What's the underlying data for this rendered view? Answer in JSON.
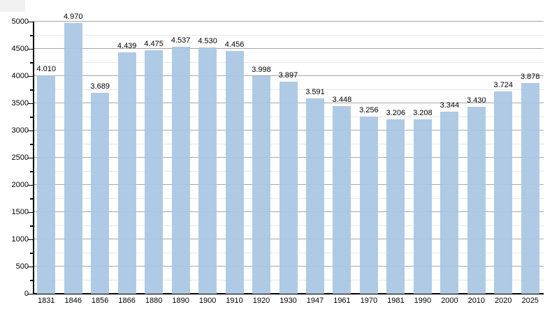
{
  "page": {
    "background_color": "#ffffff",
    "corner_artifact_color": "#f0f0f0"
  },
  "chart_data": {
    "type": "bar",
    "title": "",
    "xlabel": "",
    "ylabel": "",
    "categories": [
      "1831",
      "1846",
      "1856",
      "1866",
      "1880",
      "1890",
      "1900",
      "1910",
      "1920",
      "1930",
      "1947",
      "1961",
      "1970",
      "1981",
      "1990",
      "2000",
      "2010",
      "2020",
      "2025"
    ],
    "values": [
      4010,
      4970,
      3689,
      4439,
      4475,
      4537,
      4530,
      4456,
      3998,
      3897,
      3591,
      3448,
      3256,
      3206,
      3208,
      3344,
      3430,
      3724,
      3878
    ],
    "value_labels": [
      "4.010",
      "4.970",
      "3.689",
      "4.439",
      "4.475",
      "4.537",
      "4.530",
      "4.456",
      "3.998",
      "3.897",
      "3.591",
      "3.448",
      "3.256",
      "3.206",
      "3.208",
      "3.344",
      "3.430",
      "3.724",
      "3.878"
    ],
    "ylim": [
      0,
      5000
    ],
    "y_major_step": 500,
    "y_minor_step": 250,
    "y_tick_labels": [
      "0",
      "500",
      "1000",
      "1500",
      "2000",
      "2500",
      "3000",
      "3500",
      "4000",
      "4500",
      "5000"
    ],
    "grid": "horizontal",
    "legend": "none",
    "colors": {
      "bar": "#a9c6e3",
      "major_grid": "#a6a6a6",
      "minor_grid": "#e8e8e8",
      "axis": "#000000",
      "text": "#000000"
    }
  }
}
